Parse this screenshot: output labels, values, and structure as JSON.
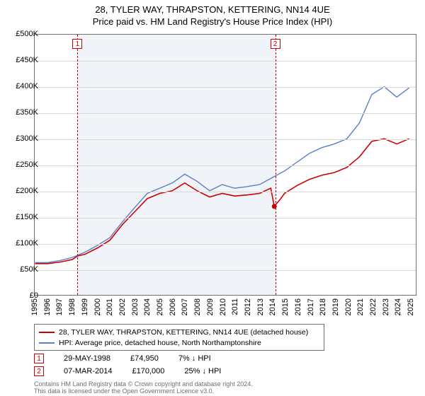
{
  "titles": {
    "line1": "28, TYLER WAY, THRAPSTON, KETTERING, NN14 4UE",
    "line2": "Price paid vs. HM Land Registry's House Price Index (HPI)"
  },
  "chart": {
    "type": "line",
    "background_color": "#ffffff",
    "shaded_band_color": "#f0f3f8",
    "grid_color": "#d9d9d9",
    "axis_color": "#707070",
    "label_fontsize": 11,
    "x": {
      "min": 1995,
      "max": 2025.5,
      "ticks": [
        1995,
        1996,
        1997,
        1998,
        1999,
        2000,
        2001,
        2002,
        2003,
        2004,
        2005,
        2006,
        2007,
        2008,
        2009,
        2010,
        2011,
        2012,
        2013,
        2014,
        2015,
        2016,
        2017,
        2018,
        2019,
        2020,
        2021,
        2022,
        2023,
        2024,
        2025
      ]
    },
    "y": {
      "min": 0,
      "max": 500000,
      "ticks": [
        0,
        50000,
        100000,
        150000,
        200000,
        250000,
        300000,
        350000,
        400000,
        450000,
        500000
      ],
      "tick_labels": [
        "£0",
        "£50K",
        "£100K",
        "£150K",
        "£200K",
        "£250K",
        "£300K",
        "£350K",
        "£400K",
        "£450K",
        "£500K"
      ]
    },
    "shaded_ranges": [
      {
        "from": 1998.41,
        "to": 2014.18
      }
    ],
    "markers": [
      {
        "n": "1",
        "x": 1998.41
      },
      {
        "n": "2",
        "x": 2014.18
      }
    ],
    "series": [
      {
        "name": "property",
        "color": "#cc0000",
        "width": 1.6,
        "data": [
          [
            1995,
            60000
          ],
          [
            1996,
            60000
          ],
          [
            1997,
            63000
          ],
          [
            1998,
            68000
          ],
          [
            1998.41,
            74950
          ],
          [
            1999,
            78000
          ],
          [
            2000,
            90000
          ],
          [
            2001,
            105000
          ],
          [
            2002,
            135000
          ],
          [
            2003,
            160000
          ],
          [
            2004,
            185000
          ],
          [
            2005,
            195000
          ],
          [
            2006,
            200000
          ],
          [
            2007,
            215000
          ],
          [
            2008,
            200000
          ],
          [
            2009,
            188000
          ],
          [
            2010,
            195000
          ],
          [
            2011,
            190000
          ],
          [
            2012,
            192000
          ],
          [
            2013,
            195000
          ],
          [
            2013.9,
            205000
          ],
          [
            2014.18,
            170000
          ],
          [
            2014.7,
            185000
          ],
          [
            2015,
            195000
          ],
          [
            2016,
            210000
          ],
          [
            2017,
            222000
          ],
          [
            2018,
            230000
          ],
          [
            2019,
            235000
          ],
          [
            2020,
            245000
          ],
          [
            2021,
            265000
          ],
          [
            2022,
            295000
          ],
          [
            2023,
            300000
          ],
          [
            2024,
            290000
          ],
          [
            2025,
            300000
          ]
        ],
        "sale_dot": {
          "x": 2014.18,
          "y": 170000
        }
      },
      {
        "name": "hpi",
        "color": "#5b7fc7",
        "width": 1.4,
        "data": [
          [
            1995,
            62000
          ],
          [
            1996,
            62000
          ],
          [
            1997,
            66000
          ],
          [
            1998,
            72000
          ],
          [
            1999,
            82000
          ],
          [
            2000,
            95000
          ],
          [
            2001,
            110000
          ],
          [
            2002,
            140000
          ],
          [
            2003,
            168000
          ],
          [
            2004,
            195000
          ],
          [
            2005,
            205000
          ],
          [
            2006,
            215000
          ],
          [
            2007,
            232000
          ],
          [
            2008,
            218000
          ],
          [
            2009,
            200000
          ],
          [
            2010,
            212000
          ],
          [
            2011,
            205000
          ],
          [
            2012,
            208000
          ],
          [
            2013,
            212000
          ],
          [
            2014,
            225000
          ],
          [
            2015,
            238000
          ],
          [
            2016,
            255000
          ],
          [
            2017,
            272000
          ],
          [
            2018,
            283000
          ],
          [
            2019,
            290000
          ],
          [
            2020,
            300000
          ],
          [
            2021,
            330000
          ],
          [
            2022,
            385000
          ],
          [
            2023,
            400000
          ],
          [
            2024,
            380000
          ],
          [
            2025,
            398000
          ]
        ]
      }
    ]
  },
  "legend": {
    "items": [
      {
        "color": "#cc0000",
        "label": "28, TYLER WAY, THRAPSTON, KETTERING, NN14 4UE (detached house)"
      },
      {
        "color": "#5b7fc7",
        "label": "HPI: Average price, detached house, North Northamptonshire"
      }
    ]
  },
  "sales": [
    {
      "n": "1",
      "date": "29-MAY-1998",
      "price": "£74,950",
      "delta": "7% ↓ HPI"
    },
    {
      "n": "2",
      "date": "07-MAR-2014",
      "price": "£170,000",
      "delta": "25% ↓ HPI"
    }
  ],
  "attribution": {
    "line1": "Contains HM Land Registry data © Crown copyright and database right 2024.",
    "line2": "This data is licensed under the Open Government Licence v3.0."
  }
}
